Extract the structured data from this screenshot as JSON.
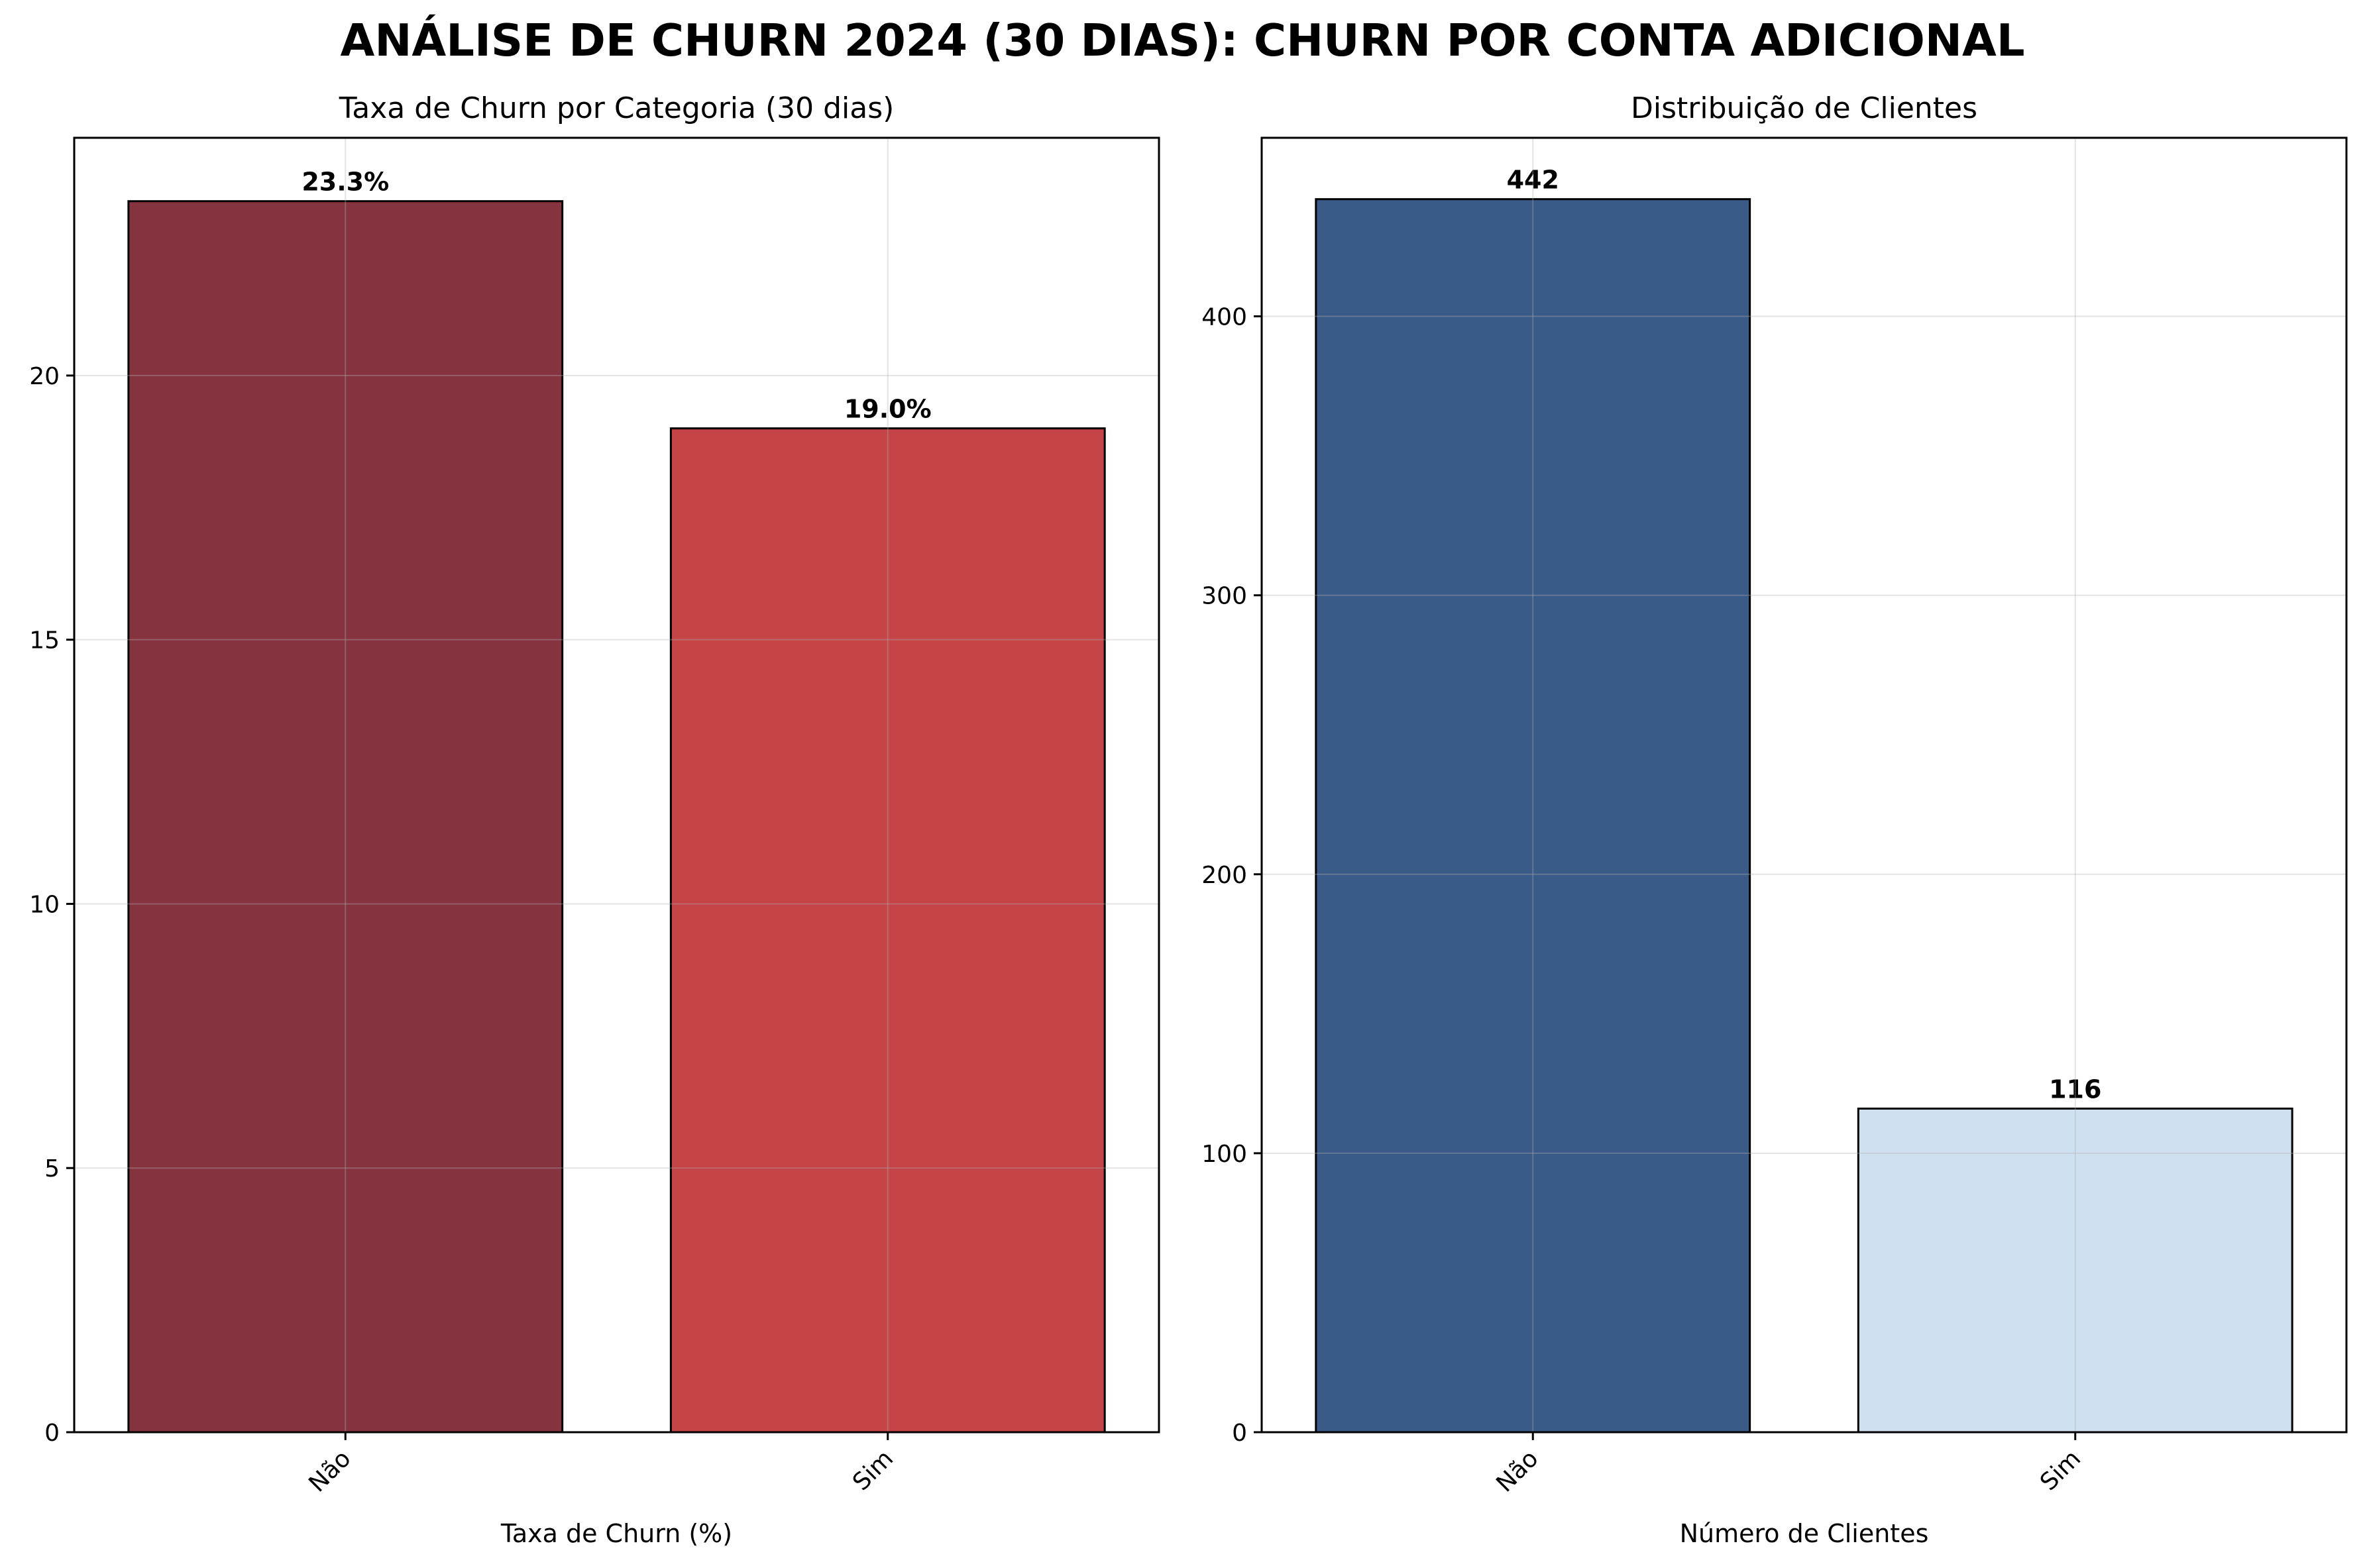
{
  "page": {
    "title": "ANÁLISE DE CHURN 2024 (30 DIAS): CHURN POR CONTA ADICIONAL"
  },
  "chart_data": [
    {
      "type": "bar",
      "title": "Taxa de Churn por Categoria (30 dias)",
      "xlabel": "Taxa de Churn (%)",
      "ylabel": "",
      "categories": [
        "Não",
        "Sim"
      ],
      "values": [
        23.3,
        19.0
      ],
      "value_labels": [
        "23.3%",
        "19.0%"
      ],
      "ylim": [
        0,
        24.5
      ],
      "yticks": [
        0,
        5,
        10,
        15,
        20
      ],
      "ytick_labels": [
        "0",
        "5",
        "10",
        "15",
        "20"
      ],
      "colors": [
        "#85333F",
        "#C44447"
      ],
      "grid": true,
      "legend": "none"
    },
    {
      "type": "bar",
      "title": "Distribuição de Clientes",
      "xlabel": "Número de Clientes",
      "ylabel": "",
      "categories": [
        "Não",
        "Sim"
      ],
      "values": [
        442,
        116
      ],
      "value_labels": [
        "442",
        "116"
      ],
      "ylim": [
        0,
        464
      ],
      "yticks": [
        0,
        100,
        200,
        300,
        400
      ],
      "ytick_labels": [
        "0",
        "100",
        "200",
        "300",
        "400"
      ],
      "colors": [
        "#3A5A87",
        "#CFE0F0"
      ],
      "grid": true,
      "legend": "none"
    }
  ]
}
